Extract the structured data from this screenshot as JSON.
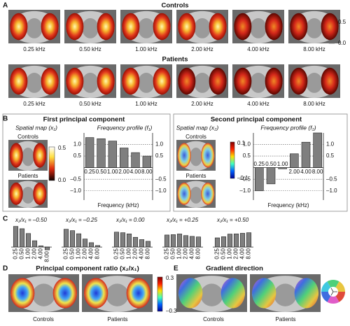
{
  "panel_a": {
    "label": "A",
    "groups": [
      {
        "title": "Controls",
        "captions": [
          "0.25 kHz",
          "0.50 kHz",
          "1.00 kHz",
          "2.00 kHz",
          "4.00 kHz",
          "8.00 kHz"
        ]
      },
      {
        "title": "Patients",
        "captions": [
          "0.25 kHz",
          "0.50 kHz",
          "1.00 kHz",
          "2.00 kHz",
          "4.00 kHz",
          "8.00 kHz"
        ]
      }
    ],
    "clim": [
      0,
      0.5
    ],
    "cticks": [
      0.5,
      {
        "value": 0,
        "label": "0.0"
      }
    ]
  },
  "panel_b": {
    "label": "B",
    "components": [
      {
        "title": "First principal component",
        "spatial_map": "Spatial map (x₁)",
        "frequency_profile": "Frequency profile (f₁)",
        "groups": [
          "Controls",
          "Patients"
        ],
        "clim": [
          0,
          0.5
        ],
        "cticks": [
          0.5,
          {
            "value": 0,
            "label": "0.0"
          }
        ]
      },
      {
        "title": "Second principal component",
        "spatial_map": "Spatial map (x₂)",
        "frequency_profile": "Frequency profile (f₂)",
        "groups": [
          "Controls",
          "Patients"
        ],
        "clim": [
          -0.1,
          0.1
        ],
        "cticks": [
          0.1,
          {
            "value": -0.1,
            "label": "–0.1"
          }
        ]
      }
    ]
  },
  "panel_c": {
    "label": "C"
  },
  "panel_d": {
    "label": "D",
    "title": "Principal component ratio (x₂/x₁)",
    "captions": [
      "Controls",
      "Patients"
    ],
    "clim": [
      -0.3,
      0.3
    ],
    "cticks": [
      0.3,
      {
        "value": -0.3,
        "label": "–0.3"
      }
    ]
  },
  "panel_e": {
    "label": "E",
    "title": "Gradient direction",
    "captions": [
      "Controls",
      "Patients"
    ]
  },
  "chart_data": [
    {
      "type": "bar",
      "xlabel": "Frequency (kHz)",
      "categories": [
        "0.25",
        "0.50",
        "1.00",
        "2.00",
        "4.00",
        "8.00"
      ],
      "values": [
        1.3,
        1.25,
        1.15,
        0.85,
        0.65,
        0.5
      ],
      "color": "#7f7f7f",
      "ylim": [
        -1.4,
        1.5
      ],
      "yticks": [
        {
          "value": 1,
          "label": "1.0"
        },
        0.5,
        {
          "value": -0.5,
          "label": "–0.5"
        },
        {
          "value": -1,
          "label": "–1.0"
        }
      ],
      "grid": true
    },
    {
      "type": "bar",
      "xlabel": "Frequency (kHz)",
      "categories": [
        "0.25",
        "0.50",
        "1.00",
        "2.00",
        "4.00",
        "8.00"
      ],
      "values": [
        -1.0,
        -0.7,
        -0.05,
        0.6,
        1.1,
        1.5
      ],
      "color": "#7f7f7f",
      "ylim": [
        -1.4,
        1.5
      ],
      "yticks": [
        {
          "value": 1,
          "label": "1.0"
        },
        0.5,
        {
          "value": -0.5,
          "label": "–0.5"
        },
        {
          "value": -1,
          "label": "–1.0"
        }
      ],
      "grid": true
    },
    {
      "type": "bar",
      "title": "x₂/x₁ = –0.50",
      "categories": [
        "0.25",
        "0.50",
        "1.00",
        "2.00",
        "4.00",
        "8.00"
      ],
      "values": [
        1.8,
        1.6,
        1.18,
        0.55,
        0.1,
        -0.25
      ],
      "color": "#7f7f7f",
      "ylim": [
        -0.3,
        1.9
      ]
    },
    {
      "type": "bar",
      "title": "x₂/x₁ = –0.25",
      "categories": [
        "0.25",
        "0.50",
        "1.00",
        "2.00",
        "4.00",
        "8.00"
      ],
      "values": [
        1.55,
        1.43,
        1.16,
        0.7,
        0.38,
        0.13
      ],
      "color": "#7f7f7f",
      "ylim": [
        -0.3,
        1.9
      ]
    },
    {
      "type": "bar",
      "title": "x₂/x₁ = 0.00",
      "categories": [
        "0.25",
        "0.50",
        "1.00",
        "2.00",
        "4.00",
        "8.00"
      ],
      "values": [
        1.3,
        1.25,
        1.15,
        0.85,
        0.65,
        0.5
      ],
      "color": "#7f7f7f",
      "ylim": [
        -0.3,
        1.9
      ]
    },
    {
      "type": "bar",
      "title": "x₂/x₁ = +0.25",
      "categories": [
        "0.25",
        "0.50",
        "1.00",
        "2.00",
        "4.00",
        "8.00"
      ],
      "values": [
        1.05,
        1.08,
        1.14,
        1.0,
        0.93,
        0.88
      ],
      "color": "#7f7f7f",
      "ylim": [
        -0.3,
        1.9
      ]
    },
    {
      "type": "bar",
      "title": "x₂/x₁ = +0.50",
      "categories": [
        "0.25",
        "0.50",
        "1.00",
        "2.00",
        "4.00",
        "8.00"
      ],
      "values": [
        0.8,
        0.9,
        1.13,
        1.15,
        1.2,
        1.25
      ],
      "color": "#7f7f7f",
      "ylim": [
        -0.3,
        1.9
      ]
    }
  ]
}
